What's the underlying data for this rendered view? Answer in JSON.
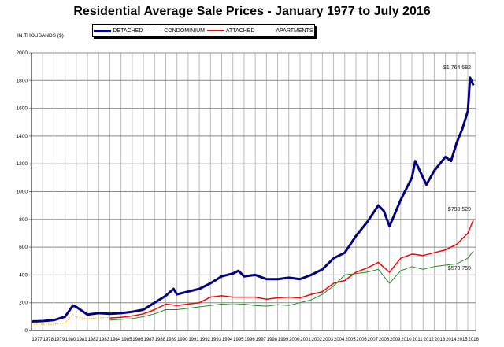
{
  "chart_data": {
    "type": "line",
    "title": "Residential Average Sale Prices  -  January 1977 to July 2016",
    "ylabel": "IN THOUSANDS ($)",
    "ylim": [
      0,
      2000
    ],
    "yticks": [
      0,
      200,
      400,
      600,
      800,
      1000,
      1200,
      1400,
      1600,
      1800,
      2000
    ],
    "xticks": [
      "1977",
      "1978",
      "1979",
      "1980",
      "1981",
      "1982",
      "1983",
      "1984",
      "1985",
      "1986",
      "1987",
      "1988",
      "1989",
      "1990",
      "1991",
      "1992",
      "1993",
      "1994",
      "1995",
      "1996",
      "1997",
      "1998",
      "1999",
      "2000",
      "2001",
      "2002",
      "2003",
      "2004",
      "2005",
      "2006",
      "2007",
      "2008",
      "2009",
      "2010",
      "2011",
      "2012",
      "2013",
      "2014",
      "2015",
      "2016"
    ],
    "grid": true,
    "legend_position": "top-center",
    "series": [
      {
        "name": "DETACHED",
        "color": "#000080",
        "style": "solid-thick",
        "x": [
          1977,
          1978,
          1979,
          1980,
          1980.7,
          1981,
          1982,
          1983,
          1984,
          1985,
          1986,
          1987,
          1988,
          1989,
          1989.7,
          1990,
          1991,
          1992,
          1993,
          1994,
          1995,
          1995.5,
          1996,
          1997,
          1998,
          1999,
          2000,
          2001,
          2002,
          2003,
          2004,
          2005,
          2006,
          2007,
          2008,
          2008.5,
          2009,
          2010,
          2011,
          2011.3,
          2012,
          2012.3,
          2013,
          2014,
          2014.5,
          2015,
          2015.5,
          2016,
          2016.2,
          2016.5
        ],
        "y": [
          65,
          68,
          75,
          100,
          180,
          170,
          115,
          125,
          120,
          125,
          135,
          150,
          200,
          250,
          300,
          260,
          280,
          300,
          340,
          390,
          410,
          430,
          390,
          400,
          370,
          370,
          380,
          370,
          400,
          440,
          520,
          560,
          680,
          780,
          900,
          860,
          750,
          940,
          1100,
          1220,
          1100,
          1050,
          1150,
          1250,
          1220,
          1350,
          1450,
          1580,
          1820,
          1764.682
        ]
      },
      {
        "name": "CONDOMINIUM",
        "color": "#FFA500",
        "style": "dotted",
        "x": [
          1977,
          1978,
          1979,
          1980,
          1980.7,
          1981,
          1982,
          1983,
          1983.9
        ],
        "y": [
          45,
          45,
          45,
          55,
          115,
          100,
          85,
          90,
          95
        ]
      },
      {
        "name": "ATTACHED",
        "color": "#FF0000",
        "style": "solid",
        "x": [
          1984,
          1985,
          1986,
          1987,
          1988,
          1989,
          1990,
          1991,
          1992,
          1993,
          1994,
          1995,
          1996,
          1997,
          1998,
          1999,
          2000,
          2001,
          2002,
          2003,
          2004,
          2005,
          2006,
          2007,
          2008,
          2009,
          2010,
          2011,
          2012,
          2013,
          2014,
          2015,
          2016,
          2016.5
        ],
        "y": [
          90,
          95,
          105,
          120,
          150,
          190,
          180,
          190,
          200,
          240,
          250,
          240,
          240,
          240,
          225,
          235,
          240,
          235,
          260,
          280,
          340,
          360,
          420,
          450,
          490,
          420,
          520,
          550,
          540,
          560,
          580,
          620,
          700,
          798.529
        ]
      },
      {
        "name": "APARTMENTS",
        "color": "#228B22",
        "style": "solid-thin",
        "x": [
          1984,
          1985,
          1986,
          1987,
          1988,
          1989,
          1990,
          1991,
          1992,
          1993,
          1994,
          1995,
          1996,
          1997,
          1998,
          1999,
          2000,
          2001,
          2002,
          2003,
          2004,
          2005,
          2006,
          2007,
          2008,
          2009,
          2010,
          2011,
          2012,
          2013,
          2014,
          2015,
          2016,
          2016.5
        ],
        "y": [
          75,
          80,
          85,
          100,
          120,
          150,
          150,
          160,
          170,
          180,
          190,
          185,
          190,
          180,
          175,
          185,
          180,
          200,
          220,
          260,
          320,
          400,
          410,
          420,
          440,
          340,
          430,
          460,
          440,
          460,
          470,
          480,
          520,
          573.759
        ]
      }
    ],
    "annotations": [
      "$1,764,682",
      "$798,529",
      "$573,759"
    ]
  }
}
